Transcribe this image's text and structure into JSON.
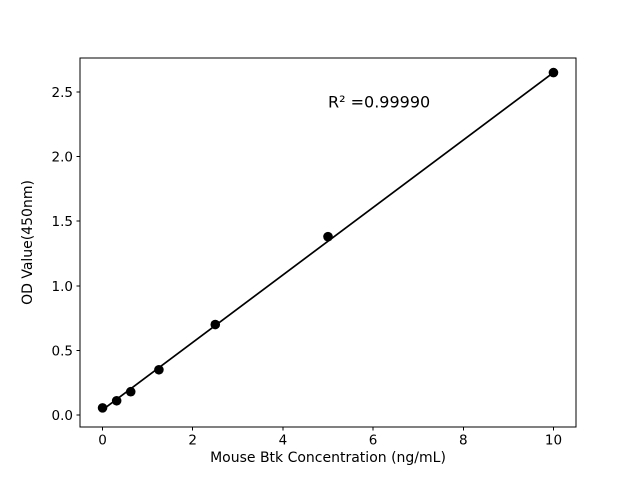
{
  "chart_data": {
    "type": "scatter",
    "title": "",
    "xlabel": "Mouse Btk Concentration (ng/mL)",
    "ylabel": "OD Value(450nm)",
    "annotation": {
      "text": "R² =0.99990",
      "x": 5.0,
      "y": 2.38
    },
    "x_ticks": [
      {
        "value": 0,
        "label": "0"
      },
      {
        "value": 2,
        "label": "2"
      },
      {
        "value": 4,
        "label": "4"
      },
      {
        "value": 6,
        "label": "6"
      },
      {
        "value": 8,
        "label": "8"
      },
      {
        "value": 10,
        "label": "10"
      }
    ],
    "y_ticks": [
      {
        "value": 0.0,
        "label": "0.0"
      },
      {
        "value": 0.5,
        "label": "0.5"
      },
      {
        "value": 1.0,
        "label": "1.0"
      },
      {
        "value": 1.5,
        "label": "1.5"
      },
      {
        "value": 2.0,
        "label": "2.0"
      },
      {
        "value": 2.5,
        "label": "2.5"
      }
    ],
    "xlim": [
      -0.5,
      10.5
    ],
    "ylim": [
      -0.093,
      2.763
    ],
    "grid": false,
    "legend": null,
    "series": [
      {
        "name": "linear-fit",
        "type": "line",
        "points": [
          {
            "x": 0,
            "y": 0.04
          },
          {
            "x": 10,
            "y": 2.65
          }
        ]
      },
      {
        "name": "standard-points",
        "type": "scatter",
        "points": [
          {
            "x": 0,
            "y": 0.055
          },
          {
            "x": 0.313,
            "y": 0.11
          },
          {
            "x": 0.625,
            "y": 0.18
          },
          {
            "x": 1.25,
            "y": 0.35
          },
          {
            "x": 2.5,
            "y": 0.7
          },
          {
            "x": 5.0,
            "y": 1.38
          },
          {
            "x": 10.0,
            "y": 2.65
          }
        ]
      }
    ],
    "colors": {
      "marker": "#000000",
      "line": "#000000",
      "spine": "#000000",
      "text": "#000000",
      "background": "#ffffff"
    }
  }
}
